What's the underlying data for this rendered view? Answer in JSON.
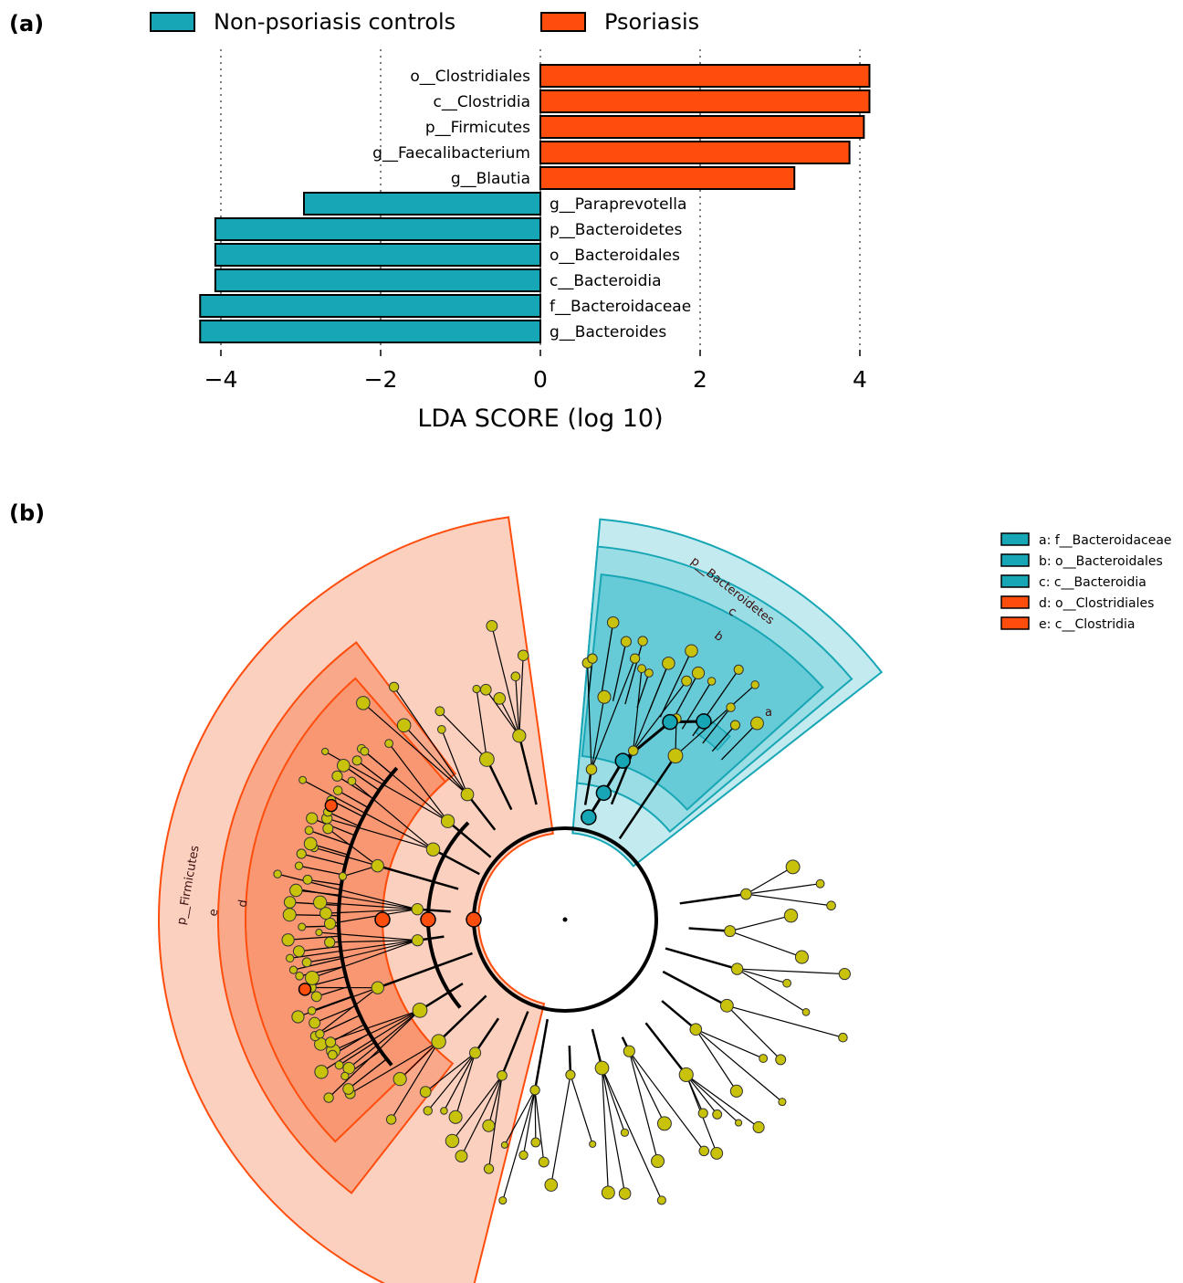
{
  "panel_a": {
    "label": "(a)"
  },
  "panel_b": {
    "label": "(b)"
  },
  "colors": {
    "controls": "#17a6b5",
    "psoriasis": "#ff4d0d",
    "node": "#c8c20a"
  },
  "chart_data": [
    {
      "type": "bar",
      "orientation": "horizontal",
      "xlabel": "LDA SCORE (log 10)",
      "xlim": [
        -4.3,
        4.2
      ],
      "xticks": [
        -4,
        -2,
        0,
        2,
        4
      ],
      "xtick_labels": [
        "−4",
        "−2",
        "0",
        "2",
        "4"
      ],
      "grid": "vertical dotted at ticks",
      "legend_position": "top",
      "legend": [
        {
          "name": "Non-psoriasis controls",
          "color": "#17a6b5"
        },
        {
          "name": "Psoriasis",
          "color": "#ff4d0d"
        }
      ],
      "categories": [
        "o__Clostridiales",
        "c__Clostridia",
        "p__Firmicutes",
        "g__Faecalibacterium",
        "g__Blautia",
        "g__Paraprevotella",
        "p__Bacteroidetes",
        "o__Bacteroidales",
        "c__Bacteroidia",
        "f__Bacteroidaceae",
        "g__Bacteroides"
      ],
      "values": [
        4.12,
        4.12,
        4.05,
        3.87,
        3.18,
        -2.96,
        -4.07,
        -4.07,
        -4.07,
        -4.26,
        -4.26
      ],
      "groups": [
        "Psoriasis",
        "Psoriasis",
        "Psoriasis",
        "Psoriasis",
        "Psoriasis",
        "Non-psoriasis controls",
        "Non-psoriasis controls",
        "Non-psoriasis controls",
        "Non-psoriasis controls",
        "Non-psoriasis controls",
        "Non-psoriasis controls"
      ]
    },
    {
      "type": "cladogram",
      "highlighted_clades": [
        {
          "label": "p__Bacteroidetes",
          "group": "Non-psoriasis controls"
        },
        {
          "label": "c",
          "group": "Non-psoriasis controls"
        },
        {
          "label": "b",
          "group": "Non-psoriasis controls"
        },
        {
          "label": "a",
          "group": "Non-psoriasis controls"
        },
        {
          "label": "p__Firmicutes",
          "group": "Psoriasis"
        },
        {
          "label": "e",
          "group": "Psoriasis"
        },
        {
          "label": "d",
          "group": "Psoriasis"
        }
      ],
      "legend": [
        {
          "key": "a: f__Bacteroidaceae",
          "group": "Non-psoriasis controls"
        },
        {
          "key": "b: o__Bacteroidales",
          "group": "Non-psoriasis controls"
        },
        {
          "key": "c: c__Bacteroidia",
          "group": "Non-psoriasis controls"
        },
        {
          "key": "d: o__Clostridiales",
          "group": "Psoriasis"
        },
        {
          "key": "e: c__Clostridia",
          "group": "Psoriasis"
        }
      ]
    }
  ]
}
